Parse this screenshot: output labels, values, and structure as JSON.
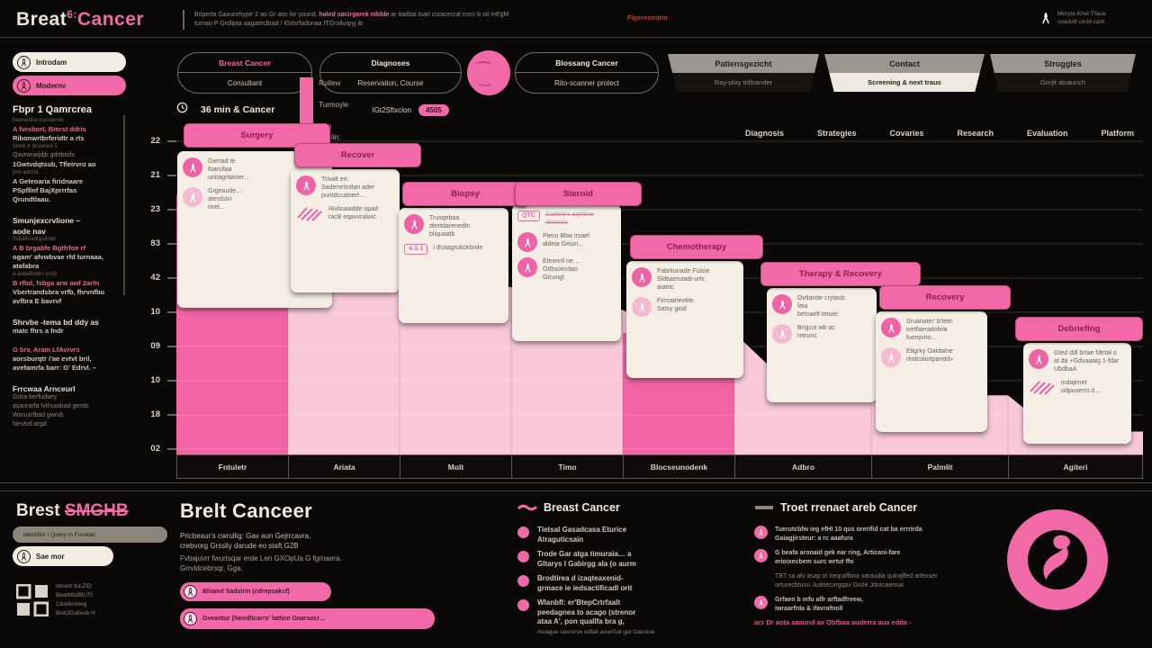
{
  "header": {
    "logo_white": "Breat",
    "logo_mark": "6:",
    "logo_pink": "Cancer",
    "desc_line1_pre": "Briperta Gaxunrhyprr 2 ao Gr anc lor yound, ",
    "desc_line1_hl": "haled sacirgarek nibble",
    "desc_line1_post": " ar itaditai loarl csracecral rrorc-b oil mEgM",
    "desc_line2": "turnao P Grdlipta aagatecbrad / iGrlsrfadunaa ITGrollurpyj ib",
    "link": "Figereseqtm",
    "right_line1": "Meryta Khet Tfaua",
    "right_line2": "soadvill cnrtd cant"
  },
  "controls": {
    "side_pills": [
      {
        "label": "Introdam",
        "active": false
      },
      {
        "label": "Modernv",
        "active": true
      }
    ],
    "stadium_buttons": [
      {
        "top": "Breast Cancer",
        "bottom": "Consultant",
        "top_pink": true
      },
      {
        "top": "Diagnoses",
        "bottom": "Reservation, Course",
        "top_pink": false
      },
      {
        "top": "Blossang Cancer",
        "bottom": "Rito-scanner protect",
        "top_pink": false
      }
    ],
    "tabs": [
      {
        "top": "Patiensgezicht",
        "bottom": "Ray-play trillsander",
        "active": false
      },
      {
        "top": "Contact",
        "bottom": "Screening & next traus",
        "active": true
      },
      {
        "top": "Struggles",
        "bottom": "Gorjlt alsaunch",
        "active": false
      }
    ]
  },
  "chart_data": {
    "type": "area",
    "title": "36 min & Cancer",
    "categories": [
      "Fntuletr",
      "Ariata",
      "Molt",
      "Timo",
      "Blocseunodenk",
      "Adbro",
      "Palmlit",
      "Agiteri"
    ],
    "values_pct": [
      79,
      58,
      51,
      44,
      37,
      24,
      18,
      7
    ],
    "highlight_columns": [
      0,
      4
    ],
    "y_tick_labels": [
      "22",
      "21",
      "23",
      "83",
      "42",
      "10",
      "09",
      "10",
      "18",
      "02"
    ],
    "top_nav": [
      "Diagnosis",
      "Strategies",
      "Covaries",
      "Research",
      "Evaluation",
      "Platform"
    ],
    "legend": {
      "items": [
        "Rullew",
        "",
        "Turmoyle",
        "",
        "Kun",
        "Sie lin:"
      ],
      "trail": "IGt2Sftxclon",
      "badge": "4505"
    },
    "colors": {
      "bar_light": "#f8c8d9",
      "bar_dark": "#f263a4",
      "banner": "#f16aa7",
      "card": "#f4eee4",
      "grid": "rgba(255,255,255,0.18)"
    },
    "stages": [
      {
        "title": "Surgery",
        "items": [
          {
            "icon": "ribbon",
            "lines": [
              "Gienad te",
              "Ibarsilaa",
              "unitagritavier…"
            ]
          },
          {
            "icon": "ribbon-light",
            "lines": [
              "Grgeaude…",
              "aterdsivi",
              "rivel…"
            ]
          }
        ]
      },
      {
        "title": "Recover",
        "items": [
          {
            "icon": "ribbon",
            "lines": [
              "Trivalt en:",
              "Sademrtintlan ader",
              "puntdccatsert…"
            ]
          },
          {
            "icon": "hatch",
            "lines": [
              "Rivbuaadde opad",
              "racB eqavvralwic"
            ]
          }
        ]
      },
      {
        "title": "Biopsy",
        "items": [
          {
            "icon": "ribbon",
            "lines": [
              "Trusqebaa",
              "dtertdarenedtn",
              "bliquaatb"
            ]
          },
          {
            "icon": "tag",
            "tag": "4-1-1",
            "lines": [
              "i iEotagrutickbnile"
            ]
          }
        ]
      },
      {
        "title": "Steroid",
        "items": [
          {
            "icon": "strike",
            "tag": "QTC",
            "lines": [
              "Gaebfe's aqtitline",
              "idrarreis"
            ]
          },
          {
            "icon": "ribbon",
            "lines": [
              "Piecu Bbw irsael",
              "aldeia Geiun…"
            ]
          },
          {
            "icon": "ribbon",
            "lines": [
              "Eteonrtl ne…",
              "Odtsciecdao",
              "Gicung!"
            ]
          }
        ]
      },
      {
        "title": "Chemotherapy",
        "items": [
          {
            "icon": "ribbon",
            "lines": [
              "Fabrkunade Fuisia",
              "Sldtiaerutadi-urts",
              "aiatric"
            ]
          },
          {
            "icon": "ribbon-light",
            "lines": [
              "Firrvatrlevtite.",
              "Satsy giod"
            ]
          }
        ]
      },
      {
        "title": "Therapy & Recovery",
        "items": [
          {
            "icon": "ribbon",
            "lines": [
              "Ovtlande crytasb.",
              "feia",
              "betnaelt tetuie:"
            ]
          },
          {
            "icon": "ribbon-light",
            "lines": [
              "Brigcoi wb ac",
              "retrunc"
            ]
          }
        ]
      },
      {
        "title": "Recovery",
        "items": [
          {
            "icon": "ribbon",
            "lines": [
              "Sruanater' b'tete:",
              "ivetfaeradolela",
              "fuerqvrio…"
            ]
          },
          {
            "icon": "ribbon-light",
            "lines": [
              "Etigrky Gaidatne",
              "rindcalurtpandd»"
            ]
          }
        ]
      },
      {
        "title": "Debriefing",
        "items": [
          {
            "icon": "ribbon",
            "lines": [
              "Gted ddl brtae fdtrtal o",
              "at da +Gdvaaatg 1-fdar",
              "UbdbaA"
            ]
          },
          {
            "icon": "hatch",
            "lines": [
              "indajenet odpuoerct.d…"
            ]
          }
        ]
      }
    ]
  },
  "sidebar": {
    "blocks": [
      {
        "style": "h1",
        "text": "Fbpr 1 Qamrcrea"
      },
      {
        "style": "tiny",
        "text": "betewrithe translends"
      },
      {
        "style": "pink",
        "text": "A fvrsbort, Bmrst ddris"
      },
      {
        "style": "white",
        "text": "Ribonwrtbrferidtr a rts"
      },
      {
        "style": "tiny",
        "text": "frewb tr browned 5"
      },
      {
        "style": "gray",
        "text": "Qavrwrarjdjb gdrtbtofs"
      },
      {
        "style": "white",
        "text": "1Gwtvdqtsub, Tfleirvro ao"
      },
      {
        "style": "tiny",
        "text": "jnm adrtrfa"
      },
      {
        "style": "white",
        "text": "A Geteoaria firidnaare"
      },
      {
        "style": "white",
        "text": "PSpfllnf BajXprrrfas"
      },
      {
        "style": "white",
        "text": "Qrundtlaau."
      },
      {
        "style": "gap",
        "text": ""
      },
      {
        "style": "h2",
        "text": "Smunjexcrvlione –"
      },
      {
        "style": "h2",
        "text": "aode nav"
      },
      {
        "style": "tiny",
        "text": "hubafruadtgsdriah"
      },
      {
        "style": "pink",
        "text": "A B brgabfe Bgtfrfoe rf"
      },
      {
        "style": "white",
        "text": "ogam' afvwbvae rfd turnaaa,"
      },
      {
        "style": "white",
        "text": "atafabra"
      },
      {
        "style": "tiny",
        "text": "a aubafbtafrv (rvd)"
      },
      {
        "style": "pink",
        "text": "B rfbd, fsbga arw awf 2arfn"
      },
      {
        "style": "white",
        "text": "Vbertrandsbra vrfb, fhrvnfbu"
      },
      {
        "style": "white",
        "text": "avfbra E bavrvf"
      },
      {
        "style": "gap",
        "text": ""
      },
      {
        "style": "h2",
        "text": "Shrvbe -tema bd ddy as"
      },
      {
        "style": "white",
        "text": "matc fhrs a fndr"
      },
      {
        "style": "gap",
        "text": ""
      },
      {
        "style": "pink",
        "text": "G brv, Aram LfAvrvrs"
      },
      {
        "style": "white",
        "text": "aorsburqtr i'ae evtvt bril,"
      },
      {
        "style": "white",
        "text": "avefamrla barr: G' Edrvl. –"
      },
      {
        "style": "gap",
        "text": ""
      },
      {
        "style": "h2",
        "text": "Frrcwaa Arnceurl"
      },
      {
        "style": "gray",
        "text": "Grtra-berfudwry"
      },
      {
        "style": "gray",
        "text": "asaurarfa lvrhuodrad gemb"
      },
      {
        "style": "gray",
        "text": "Woruxrfbad gwrvb"
      },
      {
        "style": "gray",
        "text": "Nevtvd argd"
      }
    ]
  },
  "bottom": {
    "logo_white": "Brest",
    "logo_pink": "SMGHB",
    "pill_gray": "Identifier / Query in Frewlab",
    "pill_white": "Sae mor",
    "qr_lines": [
      "Imnetr tuLZID",
      "BeatMfafBUTt",
      "13retknmeg",
      "BretJGafwvb H"
    ],
    "mid_title": "Brelt Canceer",
    "p1_line1": "Pricbeaur's cwrullig: Gav aun Gejrrcavra,",
    "p1_line2": "crebvorg Grssliy darude eo staft G2B",
    "p2_line1": "Fvbajuvrr fwurtsqar erde Len GXOpUa G fgrnaera.",
    "p2_line2": "Grrvldcebrsqr, Gga.",
    "btn1": "Bhiand Sadslrin (cdrepsaksf)",
    "btn2": "Gveantur (Needficarrs' lattice Gnarsecr…",
    "col3_header": "Breast Cancer",
    "col3_bullets": [
      {
        "lines": [
          "Tletsal Gasadcasa Eturice",
          "Atraguticsain"
        ],
        "sub": ""
      },
      {
        "lines": [
          "Trode Gar atga timuraia… a",
          "Gltarys I Gabirgg ala (o aurm"
        ],
        "sub": ""
      },
      {
        "lines": [
          "Brodtirea d izaqteaxenid-",
          "grmace ie iedsactificadl orit"
        ],
        "sub": ""
      },
      {
        "lines": [
          "Wlanbfl: er'BtepCrtrfaalt",
          "peedagnea to acago (strenor",
          "ataa A', pon quallfa bra g,"
        ],
        "sub": "Aivague casrorve edfait arceiSat gat Gacirioe"
      }
    ],
    "col4_header": "Troet rrenaet areb Cancer",
    "col4_items": [
      {
        "icon": true,
        "lines": [
          "Tuerutcbfw ieg efHI 10 qus orerifid cat ba errrirda",
          "Gaiagjirsteur: a rc aaafura"
        ]
      },
      {
        "icon": true,
        "lines": [
          "G beafa arooaid gek ear ring, Articani-fare",
          "erioixecbem surc wrtut ffo"
        ]
      },
      {
        "icon": false,
        "lines": [
          "TBT sa afv asap tri rieqrafflora varaudia qulrajffed arfexser",
          "orturecbfunu Judriecxrgqav Grcle Jdnrcaerrua"
        ]
      },
      {
        "icon": true,
        "lines": [
          "Grfaen b mfu alfr arftadfreew,",
          "iwraarfnla & ifavrafnoll"
        ]
      }
    ],
    "col4_footer": "acr Dr aota aaaund ax Obfbaa auderra aua edda -"
  }
}
